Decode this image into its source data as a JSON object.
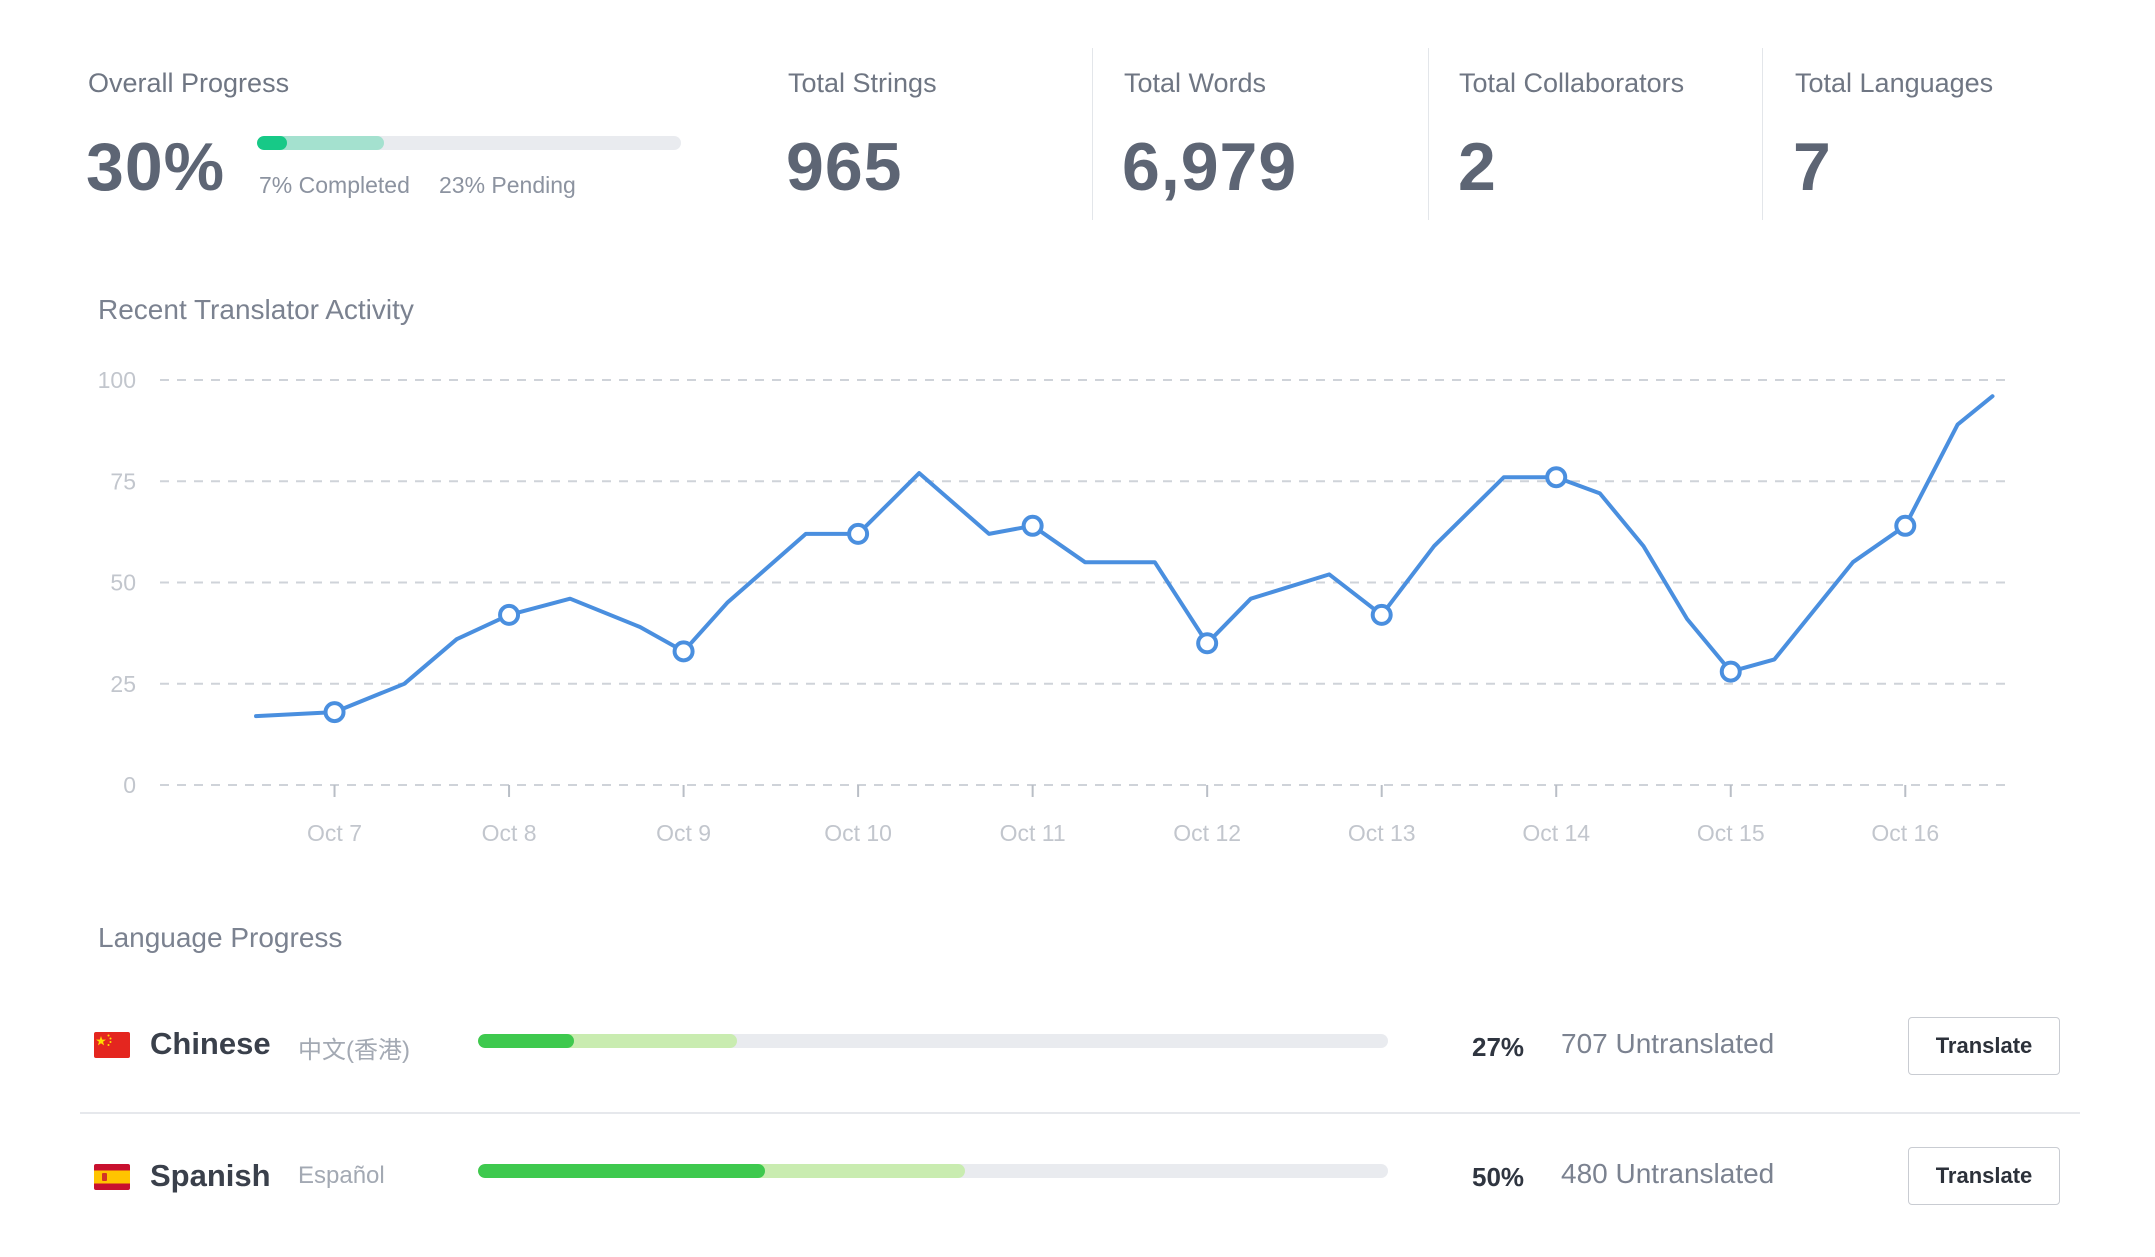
{
  "stats": {
    "overall": {
      "label": "Overall Progress",
      "value": "30%",
      "completed_label": "7% Completed",
      "pending_label": "23% Pending",
      "completed_fraction": 0.07,
      "total_fraction": 0.3,
      "completed_color": "#17c987",
      "pending_color": "#a4e1cf"
    },
    "strings": {
      "label": "Total Strings",
      "value": "965"
    },
    "words": {
      "label": "Total Words",
      "value": "6,979"
    },
    "collaborators": {
      "label": "Total Collaborators",
      "value": "2"
    },
    "languages": {
      "label": "Total Languages",
      "value": "7"
    }
  },
  "activity": {
    "title": "Recent Translator Activity"
  },
  "chart_data": {
    "type": "line",
    "title": "Recent Translator Activity",
    "xlabel": "",
    "ylabel": "",
    "ylim": [
      0,
      100
    ],
    "yticks": [
      "0",
      "25",
      "50",
      "75",
      "100"
    ],
    "xlim": [
      -1.0,
      9.6
    ],
    "xtick_labels": [
      "Oct 7",
      "Oct 8",
      "Oct 9",
      "Oct 10",
      "Oct 11",
      "Oct 12",
      "Oct 13",
      "Oct 14",
      "Oct 15",
      "Oct 16"
    ],
    "grid": true,
    "line_color": "#4a8fdf",
    "series": [
      {
        "x": [
          -0.45,
          0,
          0.4,
          0.7,
          1,
          1.35,
          1.75,
          2,
          2.25,
          2.7,
          3,
          3.35,
          3.75,
          4,
          4.3,
          4.7,
          5,
          5.25,
          5.7,
          6,
          6.3,
          6.7,
          7,
          7.25,
          7.5,
          7.75,
          8,
          8.25,
          8.7,
          9,
          9.3,
          9.5
        ],
        "y": [
          17,
          18,
          25,
          36,
          42,
          46,
          39,
          33,
          45,
          62,
          62,
          77,
          62,
          64,
          55,
          55,
          35,
          46,
          52,
          42,
          59,
          76,
          76,
          72,
          59,
          41,
          28,
          31,
          55,
          64,
          89,
          96
        ],
        "markers": [
          1,
          4,
          7,
          10,
          13,
          16,
          19,
          22,
          26,
          29
        ]
      }
    ]
  },
  "language_progress": {
    "title": "Language Progress",
    "languages": [
      {
        "name": "Chinese",
        "native": "中文(香港)",
        "flag_icon": "china-flag-icon",
        "percent": "27%",
        "untranslated": "707 Untranslated",
        "completed_fraction": 0.105,
        "total_fraction": 0.285,
        "button": "Translate"
      },
      {
        "name": "Spanish",
        "native": "Español",
        "flag_icon": "spain-flag-icon",
        "percent": "50%",
        "untranslated": "480 Untranslated",
        "completed_fraction": 0.315,
        "total_fraction": 0.535,
        "button": "Translate"
      }
    ]
  }
}
